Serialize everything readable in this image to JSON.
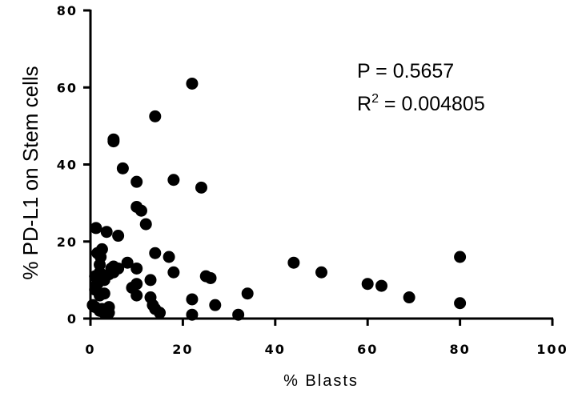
{
  "chart_data": {
    "type": "scatter",
    "title": "",
    "xlabel": "% Blasts",
    "ylabel": "% PD-L1 on Stem cells",
    "xlim": [
      0,
      100
    ],
    "ylim": [
      0,
      80
    ],
    "x_ticks": [
      0,
      20,
      40,
      60,
      80,
      100
    ],
    "y_ticks": [
      0,
      20,
      40,
      60,
      80
    ],
    "grid": false,
    "legend": "none",
    "marker_color": "#000000",
    "annotations": {
      "p_value": "P = 0.5657",
      "r2_prefix": "R",
      "r2_exponent": "2",
      "r2_value": " = 0.004805"
    },
    "points": [
      {
        "x": 0.5,
        "y": 3.5
      },
      {
        "x": 1,
        "y": 3
      },
      {
        "x": 1,
        "y": 7.5
      },
      {
        "x": 1,
        "y": 11
      },
      {
        "x": 1.2,
        "y": 23.5
      },
      {
        "x": 1.5,
        "y": 17
      },
      {
        "x": 1.5,
        "y": 9
      },
      {
        "x": 2,
        "y": 14
      },
      {
        "x": 2,
        "y": 12
      },
      {
        "x": 2,
        "y": 6
      },
      {
        "x": 2,
        "y": 2
      },
      {
        "x": 2.2,
        "y": 16
      },
      {
        "x": 2.5,
        "y": 18
      },
      {
        "x": 2.5,
        "y": 2.5
      },
      {
        "x": 3,
        "y": 11
      },
      {
        "x": 3,
        "y": 10
      },
      {
        "x": 3,
        "y": 6.5
      },
      {
        "x": 3,
        "y": 1.5
      },
      {
        "x": 3.5,
        "y": 22.5
      },
      {
        "x": 3.5,
        "y": 2.5
      },
      {
        "x": 4,
        "y": 3
      },
      {
        "x": 4,
        "y": 1.5
      },
      {
        "x": 4,
        "y": 11.5
      },
      {
        "x": 4.5,
        "y": 13
      },
      {
        "x": 5,
        "y": 13.5
      },
      {
        "x": 5,
        "y": 12
      },
      {
        "x": 5,
        "y": 46.5
      },
      {
        "x": 5,
        "y": 46
      },
      {
        "x": 6,
        "y": 21.5
      },
      {
        "x": 6,
        "y": 13
      },
      {
        "x": 7,
        "y": 39
      },
      {
        "x": 8,
        "y": 14.5
      },
      {
        "x": 9,
        "y": 8
      },
      {
        "x": 10,
        "y": 35.5
      },
      {
        "x": 10,
        "y": 29
      },
      {
        "x": 10,
        "y": 13
      },
      {
        "x": 10,
        "y": 9
      },
      {
        "x": 10,
        "y": 6
      },
      {
        "x": 11,
        "y": 28
      },
      {
        "x": 12,
        "y": 24.5
      },
      {
        "x": 13,
        "y": 10
      },
      {
        "x": 13,
        "y": 5.5
      },
      {
        "x": 13.5,
        "y": 3.5
      },
      {
        "x": 14,
        "y": 52.5
      },
      {
        "x": 14,
        "y": 17
      },
      {
        "x": 14,
        "y": 2.5
      },
      {
        "x": 15,
        "y": 1.5
      },
      {
        "x": 17,
        "y": 16
      },
      {
        "x": 18,
        "y": 36
      },
      {
        "x": 18,
        "y": 12
      },
      {
        "x": 22,
        "y": 61
      },
      {
        "x": 22,
        "y": 5
      },
      {
        "x": 22,
        "y": 1
      },
      {
        "x": 24,
        "y": 34
      },
      {
        "x": 25,
        "y": 11
      },
      {
        "x": 26,
        "y": 10.5
      },
      {
        "x": 27,
        "y": 3.5
      },
      {
        "x": 32,
        "y": 1
      },
      {
        "x": 34,
        "y": 6.5
      },
      {
        "x": 44,
        "y": 14.5
      },
      {
        "x": 50,
        "y": 12
      },
      {
        "x": 60,
        "y": 9
      },
      {
        "x": 63,
        "y": 8.5
      },
      {
        "x": 69,
        "y": 5.5
      },
      {
        "x": 80,
        "y": 16
      },
      {
        "x": 80,
        "y": 4
      }
    ]
  }
}
